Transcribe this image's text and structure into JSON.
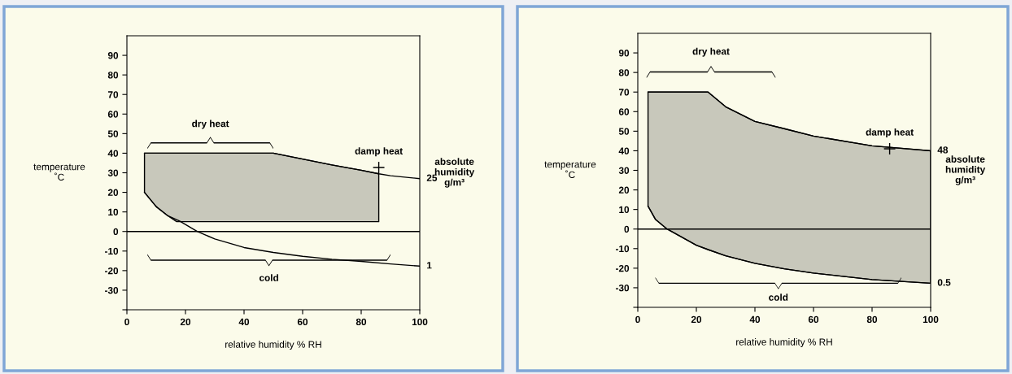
{
  "chart_data": [
    {
      "type": "line",
      "xlabel": "relative humidity % RH",
      "ylabel": "temperature\n˚C",
      "xlim": [
        0,
        100
      ],
      "xticks": [
        0,
        20,
        40,
        60,
        80,
        100
      ],
      "ylim": [
        -40,
        100
      ],
      "yticks": [
        {
          "value": -40,
          "label": null
        },
        -30,
        -20,
        -10,
        0,
        10,
        20,
        30,
        40,
        50,
        60,
        70,
        80,
        90
      ],
      "grid": false,
      "legend": false,
      "series": [
        {
          "name": "25",
          "color": "#000000",
          "x": [
            6,
            10,
            14,
            17,
            50,
            60,
            70,
            80,
            86,
            90,
            100
          ],
          "values": [
            40,
            40,
            40,
            40,
            40,
            37,
            34,
            31.3,
            29.5,
            28.5,
            27
          ],
          "upper": [
            40,
            40,
            40,
            40,
            40,
            37,
            34,
            31.3,
            29.5,
            null,
            null
          ],
          "lower": [
            20,
            12.7,
            8,
            5,
            5,
            5,
            5,
            5,
            5,
            null,
            null
          ]
        },
        {
          "name": "1",
          "color": "#000000",
          "x": [
            6,
            10,
            14,
            18,
            24,
            30,
            40,
            50,
            60,
            70,
            80,
            90,
            100
          ],
          "values": [
            20,
            12.7,
            8,
            5.3,
            0,
            -3.8,
            -8.2,
            -10.7,
            -12.7,
            -14.2,
            -15.3,
            -16.6,
            -17.7
          ]
        },
        {
          "type": "scatter",
          "marker": "cross",
          "color": "#000000",
          "x": [
            86
          ],
          "values": [
            32.7
          ]
        }
      ],
      "ref_lines": [
        {
          "axis": "y",
          "value": 0,
          "color": "#000000"
        }
      ],
      "annotations": [
        "dry heat",
        "cold",
        "damp heat",
        "absolute\nhumidity\ng/m³"
      ]
    },
    {
      "type": "line",
      "xlabel": "relative humidity % RH",
      "ylabel": "temperature\n˚C",
      "xlim": [
        0,
        100
      ],
      "xticks": [
        0,
        20,
        40,
        60,
        80,
        100
      ],
      "ylim": [
        -40,
        100
      ],
      "yticks": [
        {
          "value": -40,
          "label": null
        },
        -30,
        -20,
        -10,
        0,
        10,
        20,
        30,
        40,
        50,
        60,
        70,
        80,
        90
      ],
      "grid": false,
      "legend": false,
      "series": [
        {
          "name": "48",
          "color": "#000000",
          "x": [
            3.5,
            6,
            10,
            20,
            24,
            30,
            40,
            50,
            60,
            80,
            100
          ],
          "values": [
            70,
            70,
            70,
            70,
            70,
            62.5,
            55,
            51.3,
            47.5,
            42.5,
            40
          ],
          "upper": [
            70,
            70,
            70,
            70,
            70,
            62.5,
            55,
            51.3,
            47.5,
            42.5,
            40
          ],
          "lower": [
            11.7,
            5,
            0,
            -8.3,
            -10.5,
            -13.7,
            -17.5,
            -20.3,
            -22.5,
            -25.8,
            -27.7
          ]
        },
        {
          "name": "0.5",
          "color": "#000000",
          "x": [
            3.5,
            6,
            10,
            20,
            24,
            30,
            40,
            50,
            60,
            80,
            100
          ],
          "values": [
            11.7,
            5,
            0,
            -8.3,
            -10.5,
            -13.7,
            -17.5,
            -20.3,
            -22.5,
            -25.8,
            -27.7
          ]
        },
        {
          "type": "scatter",
          "marker": "cross",
          "color": "#000000",
          "x": [
            86
          ],
          "values": [
            41
          ]
        }
      ],
      "ref_lines": [
        {
          "axis": "y",
          "value": 0,
          "color": "#000000"
        }
      ],
      "annotations": [
        "dry heat",
        "cold",
        "damp heat",
        "absolute\nhumidity\ng/m³"
      ]
    }
  ]
}
